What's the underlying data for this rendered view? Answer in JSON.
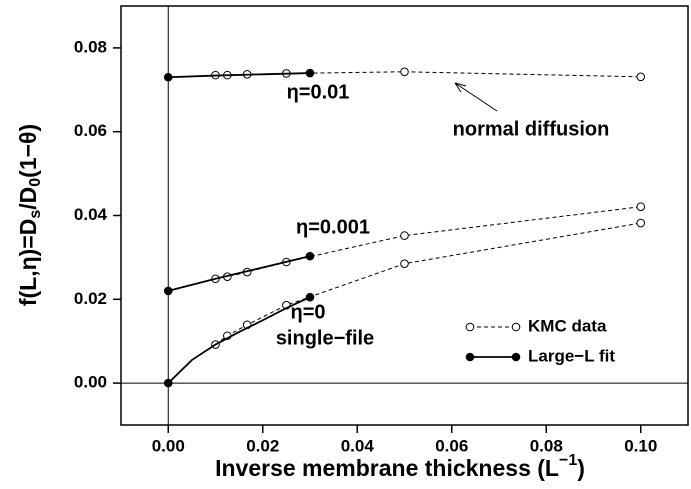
{
  "chart_data": {
    "type": "line",
    "xlabel": [
      "Inverse membrane thickness (L",
      "−1",
      ")"
    ],
    "ylabel": [
      "f(L,η)=D",
      "s",
      "/D",
      "0",
      "(1−θ)"
    ],
    "xlim": [
      -0.01,
      0.11
    ],
    "ylim": [
      -0.01,
      0.09
    ],
    "xticks": [
      {
        "value": 0,
        "label": "0.00"
      },
      {
        "value": 0.02,
        "label": "0.02"
      },
      {
        "value": 0.04,
        "label": "0.04"
      },
      {
        "value": 0.06,
        "label": "0.06"
      },
      {
        "value": 0.08,
        "label": "0.08"
      },
      {
        "value": 0.1,
        "label": "0.10"
      }
    ],
    "yticks": [
      {
        "value": 0,
        "label": "0.00"
      },
      {
        "value": 0.02,
        "label": "0.02"
      },
      {
        "value": 0.04,
        "label": "0.04"
      },
      {
        "value": 0.06,
        "label": "0.06"
      },
      {
        "value": 0.08,
        "label": "0.08"
      }
    ],
    "zero_lines": true,
    "color": "#000000",
    "legend_position": "lower right",
    "series": [
      {
        "name": "KMC data",
        "linestyle": "dashed",
        "marker": "open",
        "markers_at": "all",
        "curves": [
          {
            "x": [
              0.01,
              0.0125,
              0.0167,
              0.025,
              0.05,
              0.1
            ],
            "values": [
              0.0735,
              0.0735,
              0.0737,
              0.0739,
              0.0743,
              0.0731
            ]
          },
          {
            "x": [
              0.01,
              0.0125,
              0.0167,
              0.025,
              0.05,
              0.1
            ],
            "values": [
              0.0249,
              0.0254,
              0.0265,
              0.0289,
              0.0352,
              0.0421
            ]
          },
          {
            "x": [
              0.01,
              0.0125,
              0.0167,
              0.025,
              0.05,
              0.1
            ],
            "values": [
              0.0092,
              0.0113,
              0.0139,
              0.0186,
              0.0285,
              0.0382
            ]
          }
        ]
      },
      {
        "name": "Large−L fit",
        "linestyle": "solid",
        "marker": "filled",
        "markers_at": "ends",
        "curves": [
          {
            "x": [
              0,
              0.01,
              0.02,
              0.03
            ],
            "values": [
              0.073,
              0.0734,
              0.0737,
              0.074
            ]
          },
          {
            "x": [
              0,
              0.01,
              0.02,
              0.03
            ],
            "values": [
              0.022,
              0.0249,
              0.0276,
              0.0303
            ]
          },
          {
            "x": [
              0,
              0.005,
              0.01,
              0.015,
              0.02,
              0.025,
              0.03
            ],
            "values": [
              0,
              0.0055,
              0.0092,
              0.0122,
              0.015,
              0.0179,
              0.0205
            ]
          }
        ]
      }
    ],
    "annotations": [
      "η=0.01",
      "η=0.001",
      "η=0",
      "single−file",
      "normal diffusion"
    ]
  }
}
